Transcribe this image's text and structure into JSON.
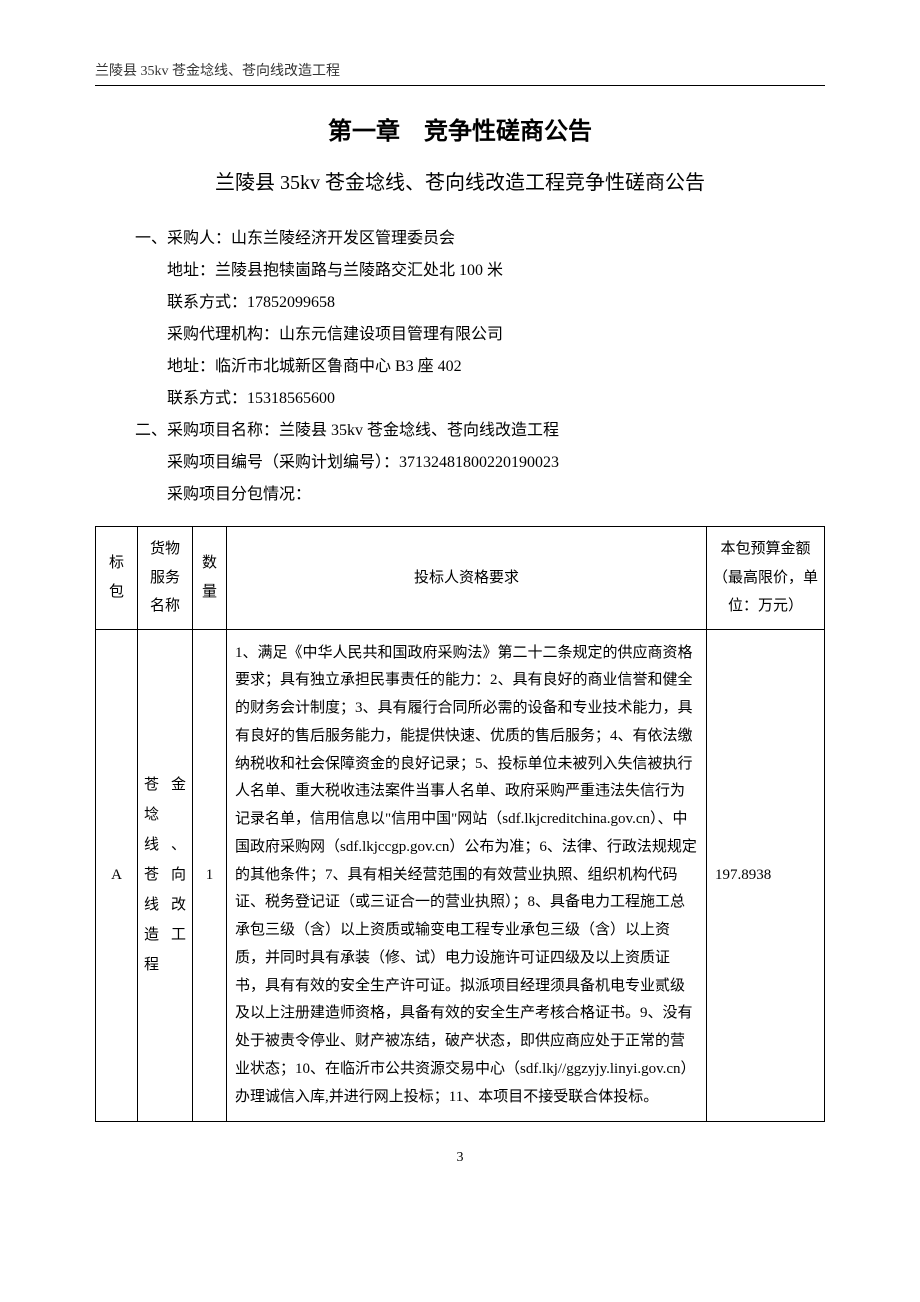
{
  "header": {
    "project_header": "兰陵县 35kv 苍金埝线、苍向线改造工程"
  },
  "chapter": {
    "title": "第一章　竞争性磋商公告",
    "subtitle": "兰陵县 35kv 苍金埝线、苍向线改造工程竞争性磋商公告"
  },
  "section1": {
    "heading": "一、采购人：山东兰陵经济开发区管理委员会",
    "line1": "地址：兰陵县抱犊崮路与兰陵路交汇处北 100 米",
    "line2": "联系方式：17852099658",
    "line3": "采购代理机构：山东元信建设项目管理有限公司",
    "line4": "地址：临沂市北城新区鲁商中心 B3 座 402",
    "line5": "联系方式：15318565600"
  },
  "section2": {
    "heading": "二、采购项目名称：兰陵县 35kv 苍金埝线、苍向线改造工程",
    "line1": "采购项目编号（采购计划编号）：37132481800220190023",
    "line2": "采购项目分包情况："
  },
  "table": {
    "columns": {
      "c1": "标包",
      "c2": "货物服务名称",
      "c3": "数量",
      "c4": "投标人资格要求",
      "c5": "本包预算金额（最高限价，单位：万元）"
    },
    "row1": {
      "pkg": "A",
      "name": "苍金埝线、苍向线改造工程",
      "qty": "1",
      "req": "1、满足《中华人民共和国政府采购法》第二十二条规定的供应商资格要求；具有独立承担民事责任的能力：2、具有良好的商业信誉和健全的财务会计制度；3、具有履行合同所必需的设备和专业技术能力，具有良好的售后服务能力，能提供快速、优质的售后服务；4、有依法缴纳税收和社会保障资金的良好记录；5、投标单位未被列入失信被执行人名单、重大税收违法案件当事人名单、政府采购严重违法失信行为记录名单，信用信息以\"信用中国\"网站（sdf.lkjcreditchina.gov.cn）、中国政府采购网（sdf.lkjccgp.gov.cn）公布为准；6、法律、行政法规规定的其他条件；7、具有相关经营范围的有效营业执照、组织机构代码证、税务登记证（或三证合一的营业执照）；8、具备电力工程施工总承包三级（含）以上资质或输变电工程专业承包三级（含）以上资质，并同时具有承装（修、试）电力设施许可证四级及以上资质证书，具有有效的安全生产许可证。拟派项目经理须具备机电专业贰级及以上注册建造师资格，具备有效的安全生产考核合格证书。9、没有处于被责令停业、财产被冻结，破产状态，即供应商应处于正常的营业状态；10、在临沂市公共资源交易中心（sdf.lkj//ggzyjy.linyi.gov.cn）办理诚信入库,并进行网上投标；11、本项目不接受联合体投标。",
      "amount": "197.8938"
    }
  },
  "footer": {
    "page": "3"
  }
}
